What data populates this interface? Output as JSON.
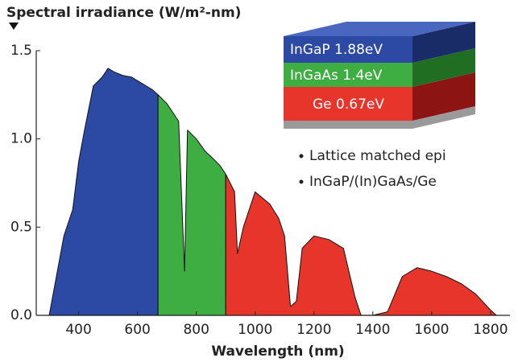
{
  "chart_data": {
    "type": "area",
    "title": "Spectral irradiance (W/m²-nm)",
    "xlabel": "Wavelength (nm)",
    "annotations": [
      "Lattice matched epi",
      "InGaP/(In)GaAs/Ge"
    ],
    "x": [
      300,
      320,
      350,
      380,
      400,
      420,
      450,
      480,
      500,
      520,
      550,
      580,
      600,
      630,
      650,
      670,
      700,
      720,
      740,
      760,
      770,
      800,
      830,
      850,
      880,
      900,
      930,
      940,
      960,
      1000,
      1050,
      1080,
      1100,
      1120,
      1140,
      1160,
      1200,
      1250,
      1300,
      1340,
      1360,
      1400,
      1450,
      1500,
      1550,
      1600,
      1650,
      1700,
      1750,
      1800,
      1820
    ],
    "series": [
      {
        "name": "InGaP 1.88eV",
        "color": "#2c4aa3",
        "values": [
          0.0,
          0.18,
          0.45,
          0.6,
          0.87,
          1.05,
          1.3,
          1.35,
          1.4,
          1.38,
          1.36,
          1.35,
          1.33,
          1.3,
          1.28,
          1.25,
          null,
          null,
          null,
          null,
          null,
          null,
          null,
          null,
          null,
          null,
          null,
          null,
          null,
          null,
          null,
          null,
          null,
          null,
          null,
          null,
          null,
          null,
          null,
          null,
          null,
          null,
          null,
          null,
          null,
          null,
          null,
          null,
          null,
          null,
          null
        ]
      },
      {
        "name": "InGaAs 1.4eV",
        "color": "#3fae42",
        "values": [
          null,
          null,
          null,
          null,
          null,
          null,
          null,
          null,
          null,
          null,
          null,
          null,
          null,
          null,
          null,
          1.25,
          1.2,
          1.15,
          1.1,
          0.25,
          1.05,
          1.0,
          0.93,
          0.9,
          0.85,
          0.8,
          null,
          null,
          null,
          null,
          null,
          null,
          null,
          null,
          null,
          null,
          null,
          null,
          null,
          null,
          null,
          null,
          null,
          null,
          null,
          null,
          null,
          null,
          null,
          null,
          null
        ]
      },
      {
        "name": "Ge 0.67eV",
        "color": "#e8352c",
        "values": [
          null,
          null,
          null,
          null,
          null,
          null,
          null,
          null,
          null,
          null,
          null,
          null,
          null,
          null,
          null,
          null,
          null,
          null,
          null,
          null,
          null,
          null,
          null,
          null,
          null,
          0.8,
          0.7,
          0.35,
          0.5,
          0.7,
          0.63,
          0.55,
          0.45,
          0.05,
          0.08,
          0.38,
          0.45,
          0.43,
          0.38,
          0.1,
          0.0,
          0.0,
          0.02,
          0.22,
          0.27,
          0.25,
          0.22,
          0.18,
          0.12,
          0.03,
          0.0
        ]
      }
    ],
    "xlim": [
      256,
      1866
    ],
    "xticks": [
      400,
      600,
      800,
      1000,
      1200,
      1400,
      1600,
      1800
    ],
    "ylim": [
      0,
      1.5
    ],
    "yticks": [
      {
        "value": 0,
        "label": "0.0"
      },
      {
        "value": 0.5,
        "label": "0.5"
      },
      {
        "value": 1,
        "label": "1.0"
      },
      {
        "value": 1.5,
        "label": "1.5"
      }
    ]
  }
}
